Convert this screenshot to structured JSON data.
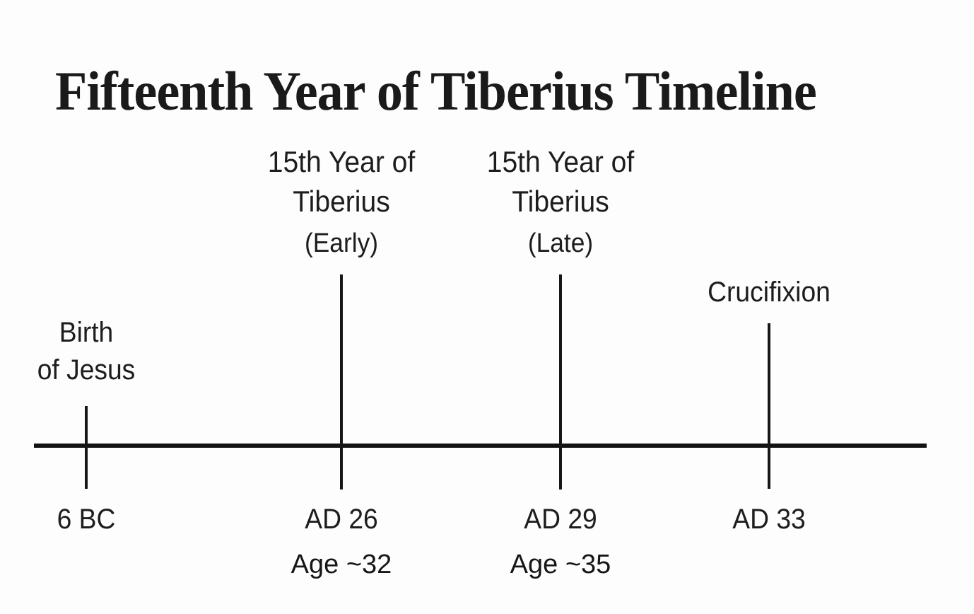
{
  "title": "Fifteenth Year of Tiberius Timeline",
  "colors": {
    "background": "#fdfdfd",
    "ink": "#1b1b1b",
    "line": "#121212"
  },
  "timeline": {
    "events": [
      {
        "id": "birth-of-jesus",
        "label_line1": "Birth",
        "label_line2": "of Jesus",
        "sublabel": "",
        "year": "6 BC",
        "age": ""
      },
      {
        "id": "fifteenth-year-early",
        "label_line1": "15th Year of",
        "label_line2": "Tiberius",
        "sublabel": "(Early)",
        "year": "AD 26",
        "age": "Age ~32"
      },
      {
        "id": "fifteenth-year-late",
        "label_line1": "15th Year of",
        "label_line2": "Tiberius",
        "sublabel": "(Late)",
        "year": "AD 29",
        "age": "Age ~35"
      },
      {
        "id": "crucifixion",
        "label_line1": "Crucifixion",
        "label_line2": "",
        "sublabel": "",
        "year": "AD 33",
        "age": ""
      }
    ]
  }
}
